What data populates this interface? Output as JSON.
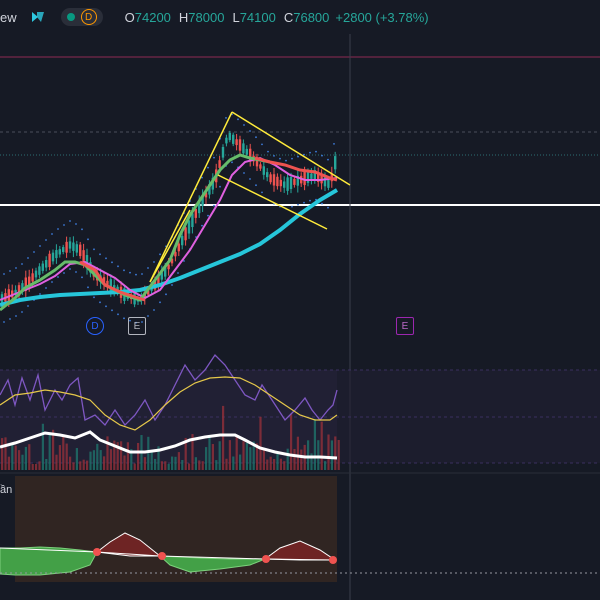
{
  "legend": {
    "title_fragment": "ew",
    "interval": "D",
    "open_label": "O",
    "open": "74200",
    "high_label": "H",
    "high": "78000",
    "low_label": "L",
    "low": "74100",
    "close_label": "C",
    "close": "76800",
    "change": "+2800 (+3.78%)"
  },
  "markers": [
    {
      "text": "D",
      "color": "#2962ff"
    },
    {
      "text": "E",
      "color": "#b2b5be"
    },
    {
      "text": "E",
      "color": "#9c27b0"
    }
  ],
  "lower_pane_label": "ần",
  "colors": {
    "background": "#161a25",
    "up": "#26a69a",
    "down": "#ef5350",
    "trendline": "#ffeb3b",
    "ma_cyan": "#26c6da",
    "ma_pink": "#e040fb",
    "rsi": "#7e57c2"
  }
}
